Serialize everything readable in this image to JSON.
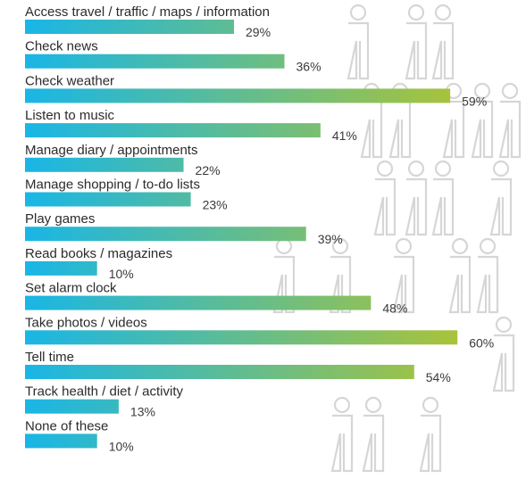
{
  "chart_data": {
    "type": "bar",
    "orientation": "horizontal",
    "title": "",
    "xlabel": "",
    "ylabel": "",
    "xlim": [
      0,
      60
    ],
    "grid": false,
    "legend": "none",
    "value_suffix": "%",
    "categories": [
      "Access travel  /  traffic  /  maps  /  information",
      "Check news",
      "Check weather",
      "Listen to music",
      "Manage diary  /  appointments",
      "Manage shopping  /  to-do lists",
      "Play games",
      "Read books  /  magazines",
      "Set alarm clock",
      "Take photos  /  videos",
      "Tell time",
      "Track health  /  diet  /  activity",
      "None of these"
    ],
    "values": [
      29,
      36,
      59,
      41,
      22,
      23,
      39,
      10,
      48,
      60,
      54,
      13,
      10
    ],
    "value_labels": [
      "29%",
      "36%",
      "59%",
      "41%",
      "22%",
      "23%",
      "39%",
      "10%",
      "48%",
      "60%",
      "54%",
      "13%",
      "10%"
    ],
    "colors": {
      "bar_start": "#19b6e6",
      "bar_end": "#a9c33a",
      "figure_outline": "#d6d6d6"
    }
  }
}
